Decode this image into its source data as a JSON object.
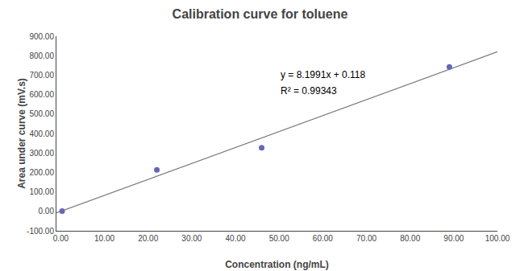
{
  "chart_data": {
    "type": "scatter",
    "title": "Calibration curve for toluene",
    "xlabel": "Concentration (ng/mL)",
    "ylabel": "Area under curve (mV.s)",
    "series": [
      {
        "type": "scatter",
        "marker": "circle",
        "color": "#6666bb",
        "x": [
          0.3,
          22.0,
          46.0,
          89.0
        ],
        "values": [
          1.0,
          213.0,
          327.0,
          742.0
        ]
      },
      {
        "type": "line",
        "line_style": "solid",
        "color": "#777777",
        "x": [
          -1,
          100
        ],
        "values": [
          -8.0811,
          820.028
        ]
      }
    ],
    "annotations": [
      "y = 8.1991x + 0.118",
      "R² = 0.99343"
    ],
    "xlim": [
      -1,
      100
    ],
    "ylim": [
      -100,
      900
    ],
    "xticks": [
      {
        "value": 0,
        "label": "0.00"
      },
      {
        "value": 10,
        "label": "10.00"
      },
      {
        "value": 20,
        "label": "20.00"
      },
      {
        "value": 30,
        "label": "30.00"
      },
      {
        "value": 40,
        "label": "40.00"
      },
      {
        "value": 50,
        "label": "50.00"
      },
      {
        "value": 60,
        "label": "60.00"
      },
      {
        "value": 70,
        "label": "70.00"
      },
      {
        "value": 80,
        "label": "80.00"
      },
      {
        "value": 90,
        "label": "90.00"
      },
      {
        "value": 100,
        "label": "100.00"
      }
    ],
    "yticks": [
      {
        "value": -100,
        "label": "-100.00"
      },
      {
        "value": 0,
        "label": "0.00"
      },
      {
        "value": 100,
        "label": "100.00"
      },
      {
        "value": 200,
        "label": "200.00"
      },
      {
        "value": 300,
        "label": "300.00"
      },
      {
        "value": 400,
        "label": "400.00"
      },
      {
        "value": 500,
        "label": "500.00"
      },
      {
        "value": 600,
        "label": "600.00"
      },
      {
        "value": 700,
        "label": "700.00"
      },
      {
        "value": 800,
        "label": "800.00"
      },
      {
        "value": 900,
        "label": "900.00"
      }
    ],
    "grid": false
  }
}
